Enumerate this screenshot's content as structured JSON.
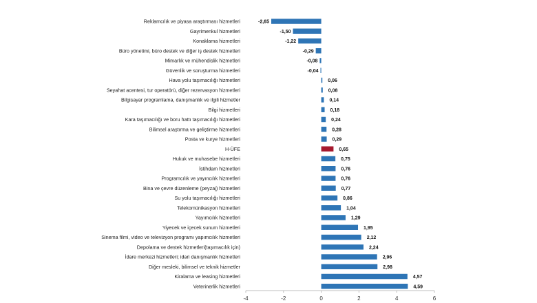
{
  "chart_data": {
    "type": "bar",
    "orientation": "horizontal",
    "title": "",
    "xlabel": "",
    "ylabel": "",
    "xlim": [
      -4,
      6
    ],
    "xticks": [
      -4,
      -2,
      0,
      2,
      4,
      6
    ],
    "xtick_labels": [
      "-4",
      "-2",
      "0",
      "2",
      "4",
      "6"
    ],
    "grid": false,
    "legend": "none",
    "bar_color": "#2e75b6",
    "highlight_color": "#a6192e",
    "highlight_category": "H-ÜFE",
    "categories": [
      "Reklamcılık ve piyasa araştırması hizmetleri",
      "Gayrimenkul hizmetleri",
      "Konaklama hizmetleri",
      "Büro yönetimi, büro destek ve diğer iş destek hizmetleri",
      "Mimarlık ve mühendislik hizmetleri",
      "Güvenlik ve soruşturma hizmetleri",
      "Hava yolu taşımacılığı hizmetleri",
      "Seyahat acentesi, tur operatörü, diğer rezervasyon hizmetleri",
      "Bilgisayar programlama, danışmanlık ve ilgili hizmetler",
      "Bilgi hizmetleri",
      "Kara taşımacılığı ve boru hattı taşımacılığı hizmetleri",
      "Bilimsel araştırma ve geliştirme hizmetleri",
      "Posta ve kurye hizmetleri",
      "H-ÜFE",
      "Hukuk ve muhasebe hizmetleri",
      "İstihdam hizmetleri",
      "Programcılık ve yayıncılık hizmetleri",
      "Bina ve çevre düzenleme (peyzaj) hizmetleri",
      "Su yolu taşımacılığı hizmetleri",
      "Telekomünikasyon hizmetleri",
      "Yayımcılık hizmetleri",
      "Yiyecek ve içecek sunum hizmetleri",
      "Sinema filmi, video ve televizyon programı yapımcılık hizmetleri",
      "Depolama ve destek hizmetleri(taşımacılık için)",
      "İdare merkezi hizmetleri; idari danışmanlık hizmetleri",
      "Diğer mesleki, bilimsel ve teknik hizmetler",
      "Kiralama ve leasing hizmetleri",
      "Veterinerlik hizmetleri"
    ],
    "values": [
      -2.65,
      -1.5,
      -1.22,
      -0.29,
      -0.08,
      -0.04,
      0.06,
      0.08,
      0.14,
      0.18,
      0.24,
      0.28,
      0.29,
      0.65,
      0.75,
      0.76,
      0.76,
      0.77,
      0.86,
      1.04,
      1.29,
      1.95,
      2.12,
      2.24,
      2.96,
      2.98,
      4.57,
      4.59
    ],
    "value_labels": [
      "-2,65",
      "-1,50",
      "-1,22",
      "-0,29",
      "-0,08",
      "-0,04",
      "0,06",
      "0,08",
      "0,14",
      "0,18",
      "0,24",
      "0,28",
      "0,29",
      "0,65",
      "0,75",
      "0,76",
      "0,76",
      "0,77",
      "0,86",
      "1,04",
      "1,29",
      "1,95",
      "2,12",
      "2,24",
      "2,96",
      "2,98",
      "4,57",
      "4,59"
    ]
  }
}
